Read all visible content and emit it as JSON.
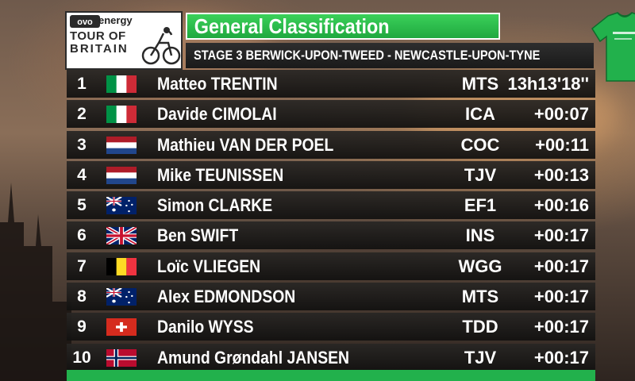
{
  "brand": {
    "sponsor": "energy",
    "logo_line1": "TOUR OF",
    "logo_line2": "BRITAIN"
  },
  "header": {
    "title": "General Classification",
    "stage": "STAGE 3  BERWICK-UPON-TWEED - NEWCASTLE-UPON-TYNE",
    "jersey_color": "#22b14c"
  },
  "standings": [
    {
      "pos": "1",
      "flag": "italy",
      "name": "Matteo TRENTIN",
      "team": "MTS",
      "time": "13h13'18''"
    },
    {
      "pos": "2",
      "flag": "italy",
      "name": "Davide CIMOLAI",
      "team": "ICA",
      "time": "+00:07"
    },
    {
      "pos": "3",
      "flag": "netherlands",
      "name": "Mathieu VAN DER POEL",
      "team": "COC",
      "time": "+00:11"
    },
    {
      "pos": "4",
      "flag": "netherlands",
      "name": "Mike TEUNISSEN",
      "team": "TJV",
      "time": "+00:13"
    },
    {
      "pos": "5",
      "flag": "australia",
      "name": "Simon CLARKE",
      "team": "EF1",
      "time": "+00:16"
    },
    {
      "pos": "6",
      "flag": "uk",
      "name": "Ben SWIFT",
      "team": "INS",
      "time": "+00:17"
    },
    {
      "pos": "7",
      "flag": "belgium",
      "name": "Loïc VLIEGEN",
      "team": "WGG",
      "time": "+00:17"
    },
    {
      "pos": "8",
      "flag": "australia",
      "name": "Alex EDMONDSON",
      "team": "MTS",
      "time": "+00:17"
    },
    {
      "pos": "9",
      "flag": "switzerland",
      "name": "Danilo WYSS",
      "team": "TDD",
      "time": "+00:17"
    },
    {
      "pos": "10",
      "flag": "norway",
      "name": "Amund Grøndahl JANSEN",
      "team": "TJV",
      "time": "+00:17"
    }
  ]
}
